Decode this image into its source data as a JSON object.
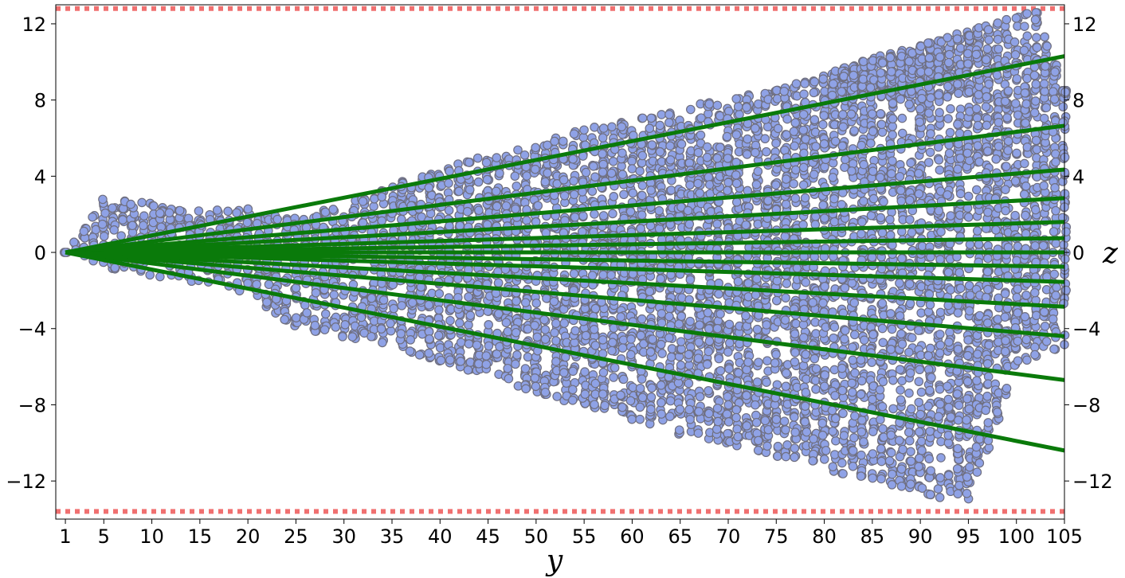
{
  "chart_data": {
    "type": "scatter",
    "xlabel": "y",
    "ylabel_right": "z",
    "xlim": [
      0,
      105
    ],
    "ylim": [
      -14,
      13
    ],
    "x_ticks": [
      1,
      5,
      10,
      15,
      20,
      25,
      30,
      35,
      40,
      45,
      50,
      55,
      60,
      65,
      70,
      75,
      80,
      85,
      90,
      95,
      100,
      105
    ],
    "y_ticks": [
      12,
      8,
      4,
      0,
      -4,
      -8,
      -12
    ],
    "y_tick_labels": [
      "12",
      "8",
      "4",
      "0",
      "−4",
      "−8",
      "−12"
    ],
    "bounds": {
      "upper": 12.8,
      "lower": -13.6,
      "color": "#f07070",
      "style": "dotted"
    },
    "colors": {
      "points_fill": "#8fa2e6",
      "points_edge": "#6f6f80",
      "lines": "#0a7a0a"
    },
    "lines": {
      "origin": [
        1,
        0
      ],
      "values_at_x105": [
        10.3,
        6.65,
        4.35,
        2.85,
        1.6,
        0.75,
        0,
        -0.75,
        -1.55,
        -2.85,
        -4.4,
        -6.7,
        -10.4
      ]
    },
    "scatter_envelope": {
      "x": [
        1,
        5,
        10,
        15,
        20,
        25,
        30,
        35,
        40,
        45,
        50,
        55,
        60,
        65,
        70,
        75,
        80,
        85,
        90,
        95,
        100,
        102,
        105
      ],
      "upper": [
        0,
        2.8,
        2.6,
        2.2,
        2.3,
        1.9,
        2.5,
        3.6,
        4.4,
        5.1,
        5.7,
        6.5,
        7.0,
        7.6,
        8.1,
        8.6,
        9.4,
        10.2,
        10.9,
        11.7,
        12.4,
        12.8,
        8.5
      ],
      "lower": [
        0,
        -0.8,
        -1.2,
        -1.6,
        -2.2,
        -3.9,
        -4.5,
        -4.8,
        -5.9,
        -6.4,
        -7.5,
        -8.0,
        -8.8,
        -9.6,
        -10.1,
        -10.7,
        -11.4,
        -12.0,
        -12.6,
        -13.3,
        -6.0,
        -5.5,
        -5.0
      ],
      "split_upper_after_x": 80,
      "inner_upper": [
        8.1,
        8.1,
        8.0,
        7.9,
        8.4,
        8.5,
        8.4
      ],
      "inner_x": [
        80,
        85,
        90,
        95,
        100,
        102,
        105
      ]
    }
  }
}
